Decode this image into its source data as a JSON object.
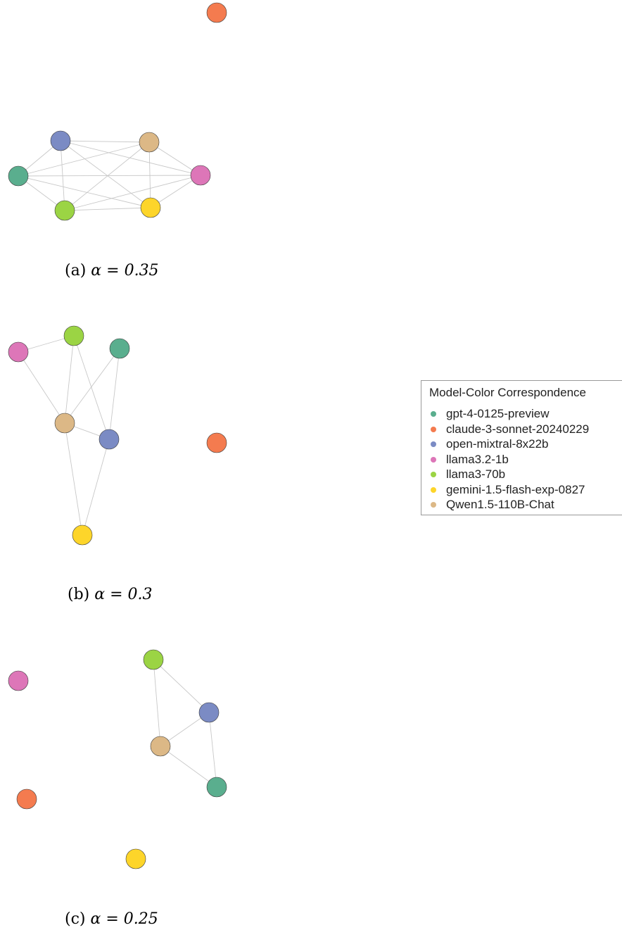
{
  "legend": {
    "title": "Model-Color Correspondence",
    "items": [
      {
        "label": "gpt-4-0125-preview",
        "color": "#5aae8e"
      },
      {
        "label": "claude-3-sonnet-20240229",
        "color": "#f47b4f"
      },
      {
        "label": "open-mixtral-8x22b",
        "color": "#7b8bc4"
      },
      {
        "label": "llama3.2-1b",
        "color": "#dd76b8"
      },
      {
        "label": "llama3-70b",
        "color": "#9bd444"
      },
      {
        "label": "gemini-1.5-flash-exp-0827",
        "color": "#fdd52a"
      },
      {
        "label": "Qwen1.5-110B-Chat",
        "color": "#dcb886"
      }
    ]
  },
  "panels": [
    {
      "caption_label": "(a)",
      "caption_math": "α = 0.35",
      "edges": [
        [
          "gpt",
          "mixtral"
        ],
        [
          "gpt",
          "qwen"
        ],
        [
          "gpt",
          "llama32"
        ],
        [
          "gpt",
          "llama70"
        ],
        [
          "gpt",
          "gemini"
        ],
        [
          "mixtral",
          "qwen"
        ],
        [
          "mixtral",
          "llama32"
        ],
        [
          "mixtral",
          "llama70"
        ],
        [
          "mixtral",
          "gemini"
        ],
        [
          "qwen",
          "llama32"
        ],
        [
          "qwen",
          "llama70"
        ],
        [
          "qwen",
          "gemini"
        ],
        [
          "llama32",
          "llama70"
        ],
        [
          "llama32",
          "gemini"
        ],
        [
          "llama70",
          "gemini"
        ]
      ]
    },
    {
      "caption_label": "(b)",
      "caption_math": "α = 0.3",
      "edges": [
        [
          "llama32",
          "llama70"
        ],
        [
          "llama32",
          "qwen"
        ],
        [
          "llama70",
          "qwen"
        ],
        [
          "llama70",
          "mixtral"
        ],
        [
          "gpt",
          "qwen"
        ],
        [
          "gpt",
          "mixtral"
        ],
        [
          "qwen",
          "mixtral"
        ],
        [
          "qwen",
          "gemini"
        ],
        [
          "mixtral",
          "gemini"
        ]
      ]
    },
    {
      "caption_label": "(c)",
      "caption_math": "α = 0.25",
      "edges": [
        [
          "llama70",
          "mixtral"
        ],
        [
          "llama70",
          "qwen"
        ],
        [
          "mixtral",
          "qwen"
        ],
        [
          "mixtral",
          "gpt"
        ],
        [
          "qwen",
          "gpt"
        ]
      ]
    }
  ]
}
